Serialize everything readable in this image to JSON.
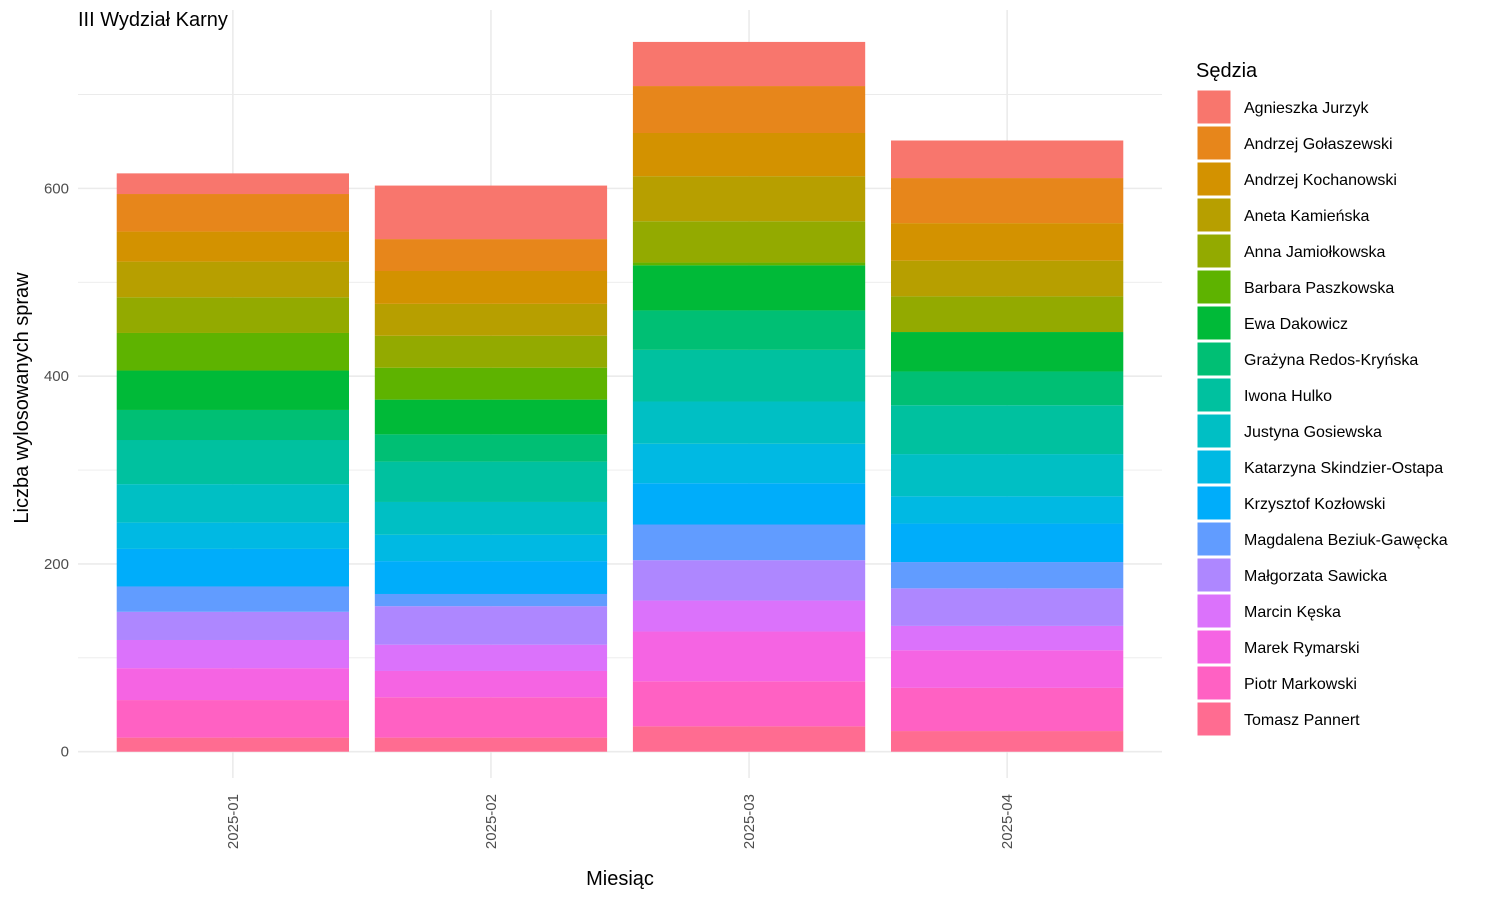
{
  "chart_data": {
    "type": "bar",
    "stacked": true,
    "title": "III Wydział Karny",
    "xlabel": "Miesiąc",
    "ylabel": "Liczba wylosowanych spraw",
    "categories": [
      "2025-01",
      "2025-02",
      "2025-03",
      "2025-04"
    ],
    "yticks": [
      "0",
      "200",
      "400",
      "600"
    ],
    "ylim": [
      -28,
      790
    ],
    "grid": true,
    "legend_title": "Sędzia",
    "legend_position": "right",
    "series": [
      {
        "name": "Agnieszka Jurzyk",
        "color": "#F8766D",
        "values": [
          22,
          57,
          47,
          40
        ]
      },
      {
        "name": "Andrzej Gołaszewski",
        "color": "#E7861B",
        "values": [
          40,
          34,
          50,
          48
        ]
      },
      {
        "name": "Andrzej Kochanowski",
        "color": "#D39200",
        "values": [
          32,
          35,
          46,
          40
        ]
      },
      {
        "name": "Aneta Kamieńska",
        "color": "#B79F00",
        "values": [
          38,
          34,
          48,
          38
        ]
      },
      {
        "name": "Anna Jamiołkowska",
        "color": "#93AA00",
        "values": [
          38,
          34,
          44,
          38
        ]
      },
      {
        "name": "Barbara Paszkowska",
        "color": "#5EB300",
        "values": [
          40,
          34,
          3,
          0
        ]
      },
      {
        "name": "Ewa Dakowicz",
        "color": "#00BA38",
        "values": [
          42,
          37,
          48,
          42
        ]
      },
      {
        "name": "Grażyna Redos-Kryńska",
        "color": "#00BF74",
        "values": [
          32,
          29,
          42,
          36
        ]
      },
      {
        "name": "Iwona Hulko",
        "color": "#00C19F",
        "values": [
          47,
          43,
          55,
          52
        ]
      },
      {
        "name": "Justyna Gosiewska",
        "color": "#00BFC4",
        "values": [
          41,
          35,
          45,
          45
        ]
      },
      {
        "name": "Katarzyna Skindzier-Ostapa",
        "color": "#00B9E3",
        "values": [
          28,
          28,
          42,
          29
        ]
      },
      {
        "name": "Krzysztof Kozłowski",
        "color": "#00ADFA",
        "values": [
          40,
          35,
          44,
          41
        ]
      },
      {
        "name": "Magdalena Beziuk-Gawęcka",
        "color": "#619CFF",
        "values": [
          27,
          13,
          38,
          28
        ]
      },
      {
        "name": "Małgorzata Sawicka",
        "color": "#AE87FF",
        "values": [
          30,
          41,
          43,
          40
        ]
      },
      {
        "name": "Marcin Kęska",
        "color": "#DB72FB",
        "values": [
          30,
          28,
          33,
          26
        ]
      },
      {
        "name": "Marek Rymarski",
        "color": "#F564E3",
        "values": [
          34,
          28,
          53,
          40
        ]
      },
      {
        "name": "Piotr Markowski",
        "color": "#FF61C3",
        "values": [
          40,
          43,
          48,
          46
        ]
      },
      {
        "name": "Tomasz Pannert",
        "color": "#FF6C91",
        "values": [
          15,
          15,
          27,
          22
        ]
      }
    ]
  }
}
